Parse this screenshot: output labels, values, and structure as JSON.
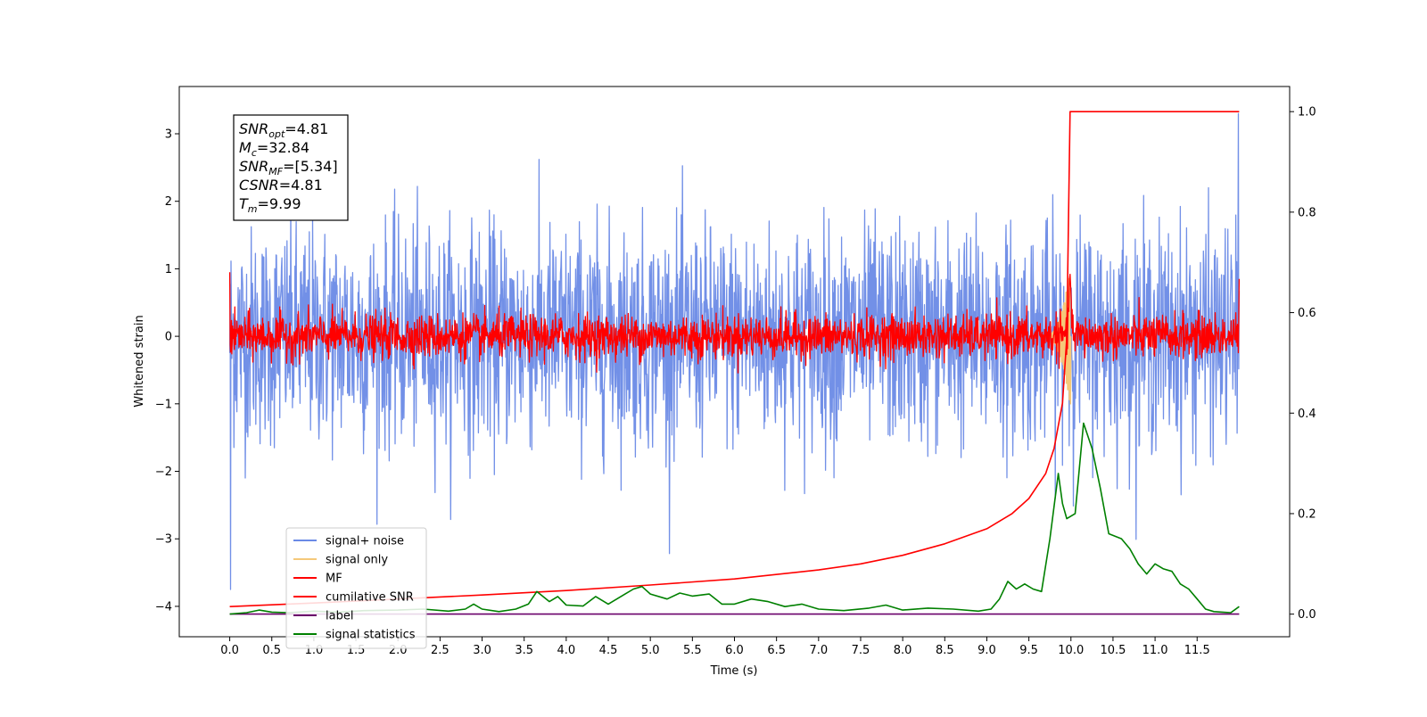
{
  "chart_data": {
    "type": "line",
    "title": "",
    "xlabel": "Time (s)",
    "ylabel": "Whitened strain",
    "xlim": [
      -0.6,
      12.6
    ],
    "ylim": [
      -4.45,
      3.7
    ],
    "y2lim": [
      -0.045,
      1.05
    ],
    "grid": false,
    "x_ticks": [
      0.0,
      0.5,
      1.0,
      1.5,
      2.0,
      2.5,
      3.0,
      3.5,
      4.0,
      4.5,
      5.0,
      5.5,
      6.0,
      6.5,
      7.0,
      7.5,
      8.0,
      8.5,
      9.0,
      9.5,
      10.0,
      10.5,
      11.0,
      11.5
    ],
    "x_tick_labels": [
      "0.0",
      "0.5",
      "1.0",
      "1.5",
      "2.0",
      "2.5",
      "3.0",
      "3.5",
      "4.0",
      "4.5",
      "5.0",
      "5.5",
      "6.0",
      "6.5",
      "7.0",
      "7.5",
      "8.0",
      "8.5",
      "9.0",
      "9.5",
      "10.0",
      "10.5",
      "11.0",
      "11.5"
    ],
    "y_ticks": [
      -4,
      -3,
      -2,
      -1,
      0,
      1,
      2,
      3
    ],
    "y_tick_labels": [
      "−4",
      "−3",
      "−2",
      "−1",
      "0",
      "1",
      "2",
      "3"
    ],
    "y2_ticks": [
      0.0,
      0.2,
      0.4,
      0.6,
      0.8,
      1.0
    ],
    "y2_tick_labels": [
      "0.0",
      "0.2",
      "0.4",
      "0.6",
      "0.8",
      "1.0"
    ],
    "legend_position": "lower-left",
    "series": [
      {
        "name": "signal+ noise",
        "color": "#6a8ae6",
        "axis": "left",
        "kind": "noise",
        "t_range": [
          0.0,
          12.0
        ],
        "std": 0.8,
        "extreme_min": -3.75,
        "extreme_max": 3.3
      },
      {
        "name": "signal only",
        "color": "#f5c97a",
        "axis": "left",
        "kind": "chirp",
        "t_range": [
          9.7,
          9.99
        ],
        "peak": 1.0,
        "trough": -1.0
      },
      {
        "name": "MF",
        "color": "#ff0000",
        "axis": "left",
        "kind": "noise",
        "t_range": [
          0.0,
          12.0
        ],
        "std": 0.16,
        "peak_time": 9.99,
        "peak_value": 0.95
      },
      {
        "name": "cumilative SNR",
        "color": "#ff0000",
        "axis": "right",
        "x": [
          0.0,
          1.0,
          2.0,
          3.0,
          4.0,
          5.0,
          6.0,
          7.0,
          7.5,
          8.0,
          8.5,
          9.0,
          9.3,
          9.5,
          9.7,
          9.8,
          9.9,
          9.95,
          9.99,
          10.01,
          11.0,
          12.0
        ],
        "values": [
          0.015,
          0.022,
          0.03,
          0.038,
          0.047,
          0.058,
          0.07,
          0.088,
          0.1,
          0.117,
          0.14,
          0.17,
          0.2,
          0.23,
          0.28,
          0.33,
          0.42,
          0.55,
          1.0,
          1.0,
          1.0,
          1.0
        ]
      },
      {
        "name": "label",
        "color": "#6a006a",
        "axis": "right",
        "x": [
          0.0,
          12.0
        ],
        "values": [
          0.0,
          0.0
        ]
      },
      {
        "name": "signal statistics",
        "color": "#008000",
        "axis": "right",
        "x": [
          0.0,
          0.2,
          0.35,
          0.5,
          0.7,
          1.0,
          1.3,
          1.6,
          2.0,
          2.3,
          2.6,
          2.8,
          2.9,
          3.0,
          3.2,
          3.4,
          3.55,
          3.65,
          3.8,
          3.9,
          4.0,
          4.2,
          4.35,
          4.5,
          4.7,
          4.8,
          4.9,
          5.0,
          5.2,
          5.35,
          5.5,
          5.7,
          5.85,
          6.0,
          6.2,
          6.4,
          6.6,
          6.8,
          7.0,
          7.3,
          7.6,
          7.8,
          8.0,
          8.3,
          8.6,
          8.9,
          9.05,
          9.15,
          9.25,
          9.35,
          9.45,
          9.55,
          9.65,
          9.75,
          9.85,
          9.9,
          9.95,
          10.05,
          10.15,
          10.25,
          10.35,
          10.45,
          10.6,
          10.7,
          10.8,
          10.9,
          11.0,
          11.1,
          11.2,
          11.3,
          11.4,
          11.5,
          11.6,
          11.7,
          11.8,
          11.9,
          12.0
        ],
        "values": [
          0.0,
          0.003,
          0.008,
          0.004,
          0.003,
          0.006,
          0.004,
          0.007,
          0.008,
          0.01,
          0.006,
          0.01,
          0.02,
          0.01,
          0.005,
          0.01,
          0.02,
          0.045,
          0.025,
          0.035,
          0.018,
          0.016,
          0.035,
          0.02,
          0.04,
          0.05,
          0.055,
          0.04,
          0.03,
          0.042,
          0.036,
          0.04,
          0.02,
          0.02,
          0.03,
          0.025,
          0.015,
          0.02,
          0.01,
          0.007,
          0.012,
          0.018,
          0.008,
          0.012,
          0.01,
          0.006,
          0.01,
          0.03,
          0.065,
          0.05,
          0.06,
          0.05,
          0.045,
          0.15,
          0.28,
          0.22,
          0.19,
          0.2,
          0.38,
          0.33,
          0.25,
          0.16,
          0.15,
          0.13,
          0.1,
          0.08,
          0.1,
          0.09,
          0.085,
          0.06,
          0.05,
          0.03,
          0.01,
          0.005,
          0.004,
          0.003,
          0.015
        ]
      }
    ],
    "annotations": [
      {
        "main": "SNR",
        "sub": "opt",
        "rest": "=4.81"
      },
      {
        "main": "M",
        "sub": "c",
        "rest": "=32.84"
      },
      {
        "main": "SNR",
        "sub": "MF",
        "rest": "=[5.34]"
      },
      {
        "main": "CSNR",
        "sub": "",
        "rest": "=4.81"
      },
      {
        "main": "T",
        "sub": "m",
        "rest": "=9.99"
      }
    ]
  }
}
